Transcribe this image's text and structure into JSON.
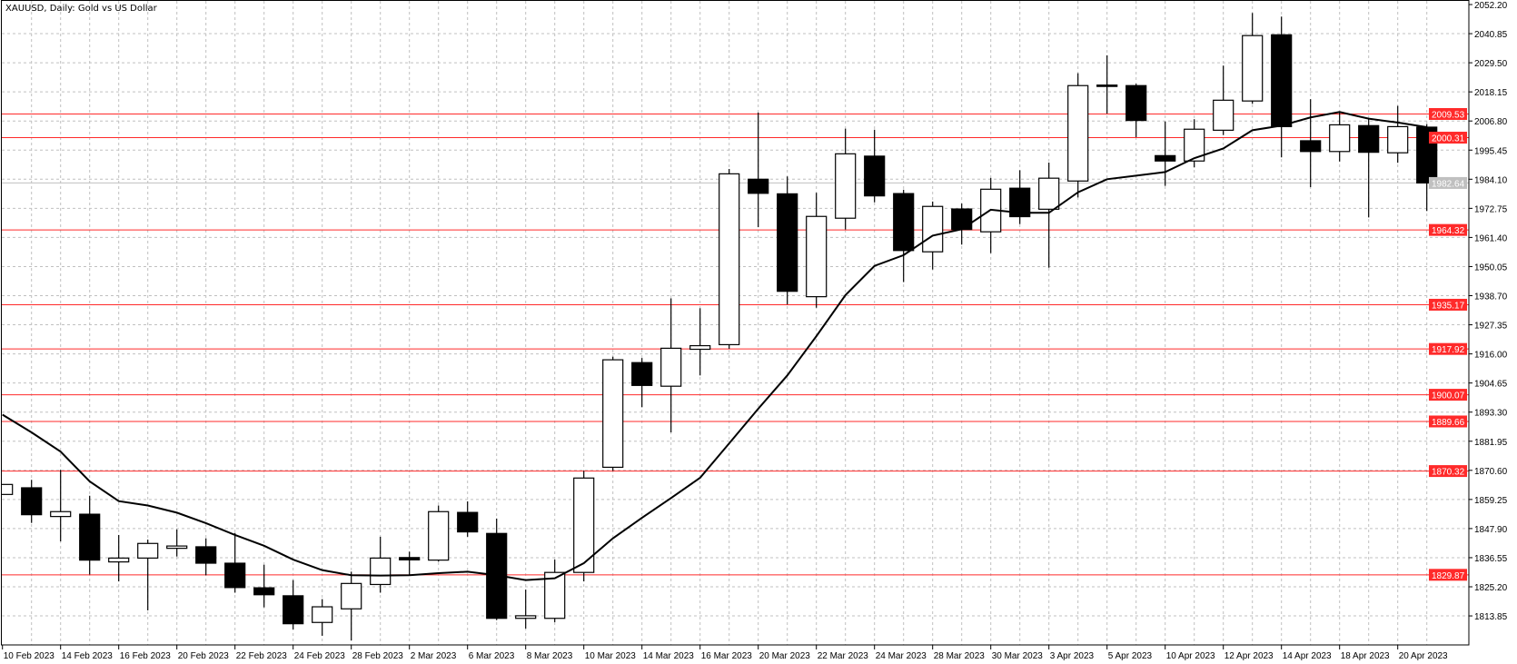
{
  "chart_data": {
    "type": "candlestick",
    "title": "XAUUSD, Daily:  Gold vs US Dollar",
    "symbol": "XAUUSD",
    "timeframe": "Daily",
    "ylim": [
      1806.0,
      2053.9
    ],
    "grid": true,
    "colors": {
      "bull_body": "#ffffff",
      "bear_body": "#000000",
      "candle_outline": "#000000",
      "moving_average": "#000000",
      "level_line": "#ff2a2a",
      "level_label_bg": "#ff2a2a",
      "current_price": "#c0c0c0",
      "grid": "#c0c0c0"
    },
    "dates": [
      "10 Feb 2023",
      "13 Feb 2023",
      "14 Feb 2023",
      "15 Feb 2023",
      "16 Feb 2023",
      "17 Feb 2023",
      "20 Feb 2023",
      "21 Feb 2023",
      "22 Feb 2023",
      "23 Feb 2023",
      "24 Feb 2023",
      "27 Feb 2023",
      "28 Feb 2023",
      "1 Mar 2023",
      "2 Mar 2023",
      "3 Mar 2023",
      "6 Mar 2023",
      "7 Mar 2023",
      "8 Mar 2023",
      "9 Mar 2023",
      "10 Mar 2023",
      "13 Mar 2023",
      "14 Mar 2023",
      "15 Mar 2023",
      "16 Mar 2023",
      "17 Mar 2023",
      "20 Mar 2023",
      "21 Mar 2023",
      "22 Mar 2023",
      "23 Mar 2023",
      "24 Mar 2023",
      "27 Mar 2023",
      "28 Mar 2023",
      "29 Mar 2023",
      "30 Mar 2023",
      "31 Mar 2023",
      "3 Apr 2023",
      "4 Apr 2023",
      "5 Apr 2023",
      "6 Apr 2023",
      "10 Apr 2023",
      "11 Apr 2023",
      "12 Apr 2023",
      "13 Apr 2023",
      "14 Apr 2023",
      "17 Apr 2023",
      "18 Apr 2023",
      "19 Apr 2023",
      "20 Apr 2023",
      "21 Apr 2023"
    ],
    "ohlc_fields": [
      "open",
      "high",
      "low",
      "close"
    ],
    "ohlc": [
      [
        1861.2,
        1865.1,
        1861.2,
        1865.1
      ],
      [
        1863.8,
        1866.9,
        1850.1,
        1853.3
      ],
      [
        1852.6,
        1870.8,
        1842.9,
        1854.5
      ],
      [
        1853.5,
        1860.7,
        1830.0,
        1835.6
      ],
      [
        1834.9,
        1845.4,
        1827.3,
        1836.4
      ],
      [
        1836.4,
        1843.6,
        1816.0,
        1842.1
      ],
      [
        1840.2,
        1847.6,
        1837.0,
        1841.1
      ],
      [
        1840.8,
        1844.1,
        1829.7,
        1834.4
      ],
      [
        1834.4,
        1846.2,
        1822.9,
        1824.9
      ],
      [
        1824.8,
        1833.8,
        1817.2,
        1822.1
      ],
      [
        1821.7,
        1827.8,
        1808.6,
        1810.8
      ],
      [
        1811.3,
        1820.4,
        1806.1,
        1817.4
      ],
      [
        1816.6,
        1831.1,
        1804.3,
        1826.5
      ],
      [
        1826.1,
        1844.7,
        1822.9,
        1836.4
      ],
      [
        1836.6,
        1838.9,
        1829.7,
        1835.7
      ],
      [
        1835.6,
        1856.9,
        1835.0,
        1854.5
      ],
      [
        1854.2,
        1858.5,
        1844.7,
        1846.6
      ],
      [
        1846.0,
        1851.8,
        1812.2,
        1812.9
      ],
      [
        1812.9,
        1824.1,
        1808.9,
        1813.9
      ],
      [
        1812.9,
        1835.8,
        1811.4,
        1830.8
      ],
      [
        1830.8,
        1870.4,
        1827.3,
        1867.6
      ],
      [
        1871.8,
        1914.9,
        1870.4,
        1913.7
      ],
      [
        1912.6,
        1914.4,
        1895.2,
        1903.7
      ],
      [
        1903.4,
        1937.7,
        1885.4,
        1918.2
      ],
      [
        1917.8,
        1933.8,
        1907.6,
        1919.2
      ],
      [
        1919.6,
        1988.1,
        1918.0,
        1986.2
      ],
      [
        1984.1,
        2010.1,
        1965.4,
        1978.6
      ],
      [
        1978.4,
        1985.2,
        1935.3,
        1940.4
      ],
      [
        1938.3,
        1978.8,
        1934.0,
        1969.6
      ],
      [
        1968.9,
        2003.8,
        1964.5,
        1994.0
      ],
      [
        1993.1,
        2003.4,
        1975.1,
        1977.6
      ],
      [
        1978.5,
        1980.0,
        1944.0,
        1956.3
      ],
      [
        1955.8,
        1975.4,
        1948.9,
        1973.5
      ],
      [
        1972.5,
        1974.6,
        1958.6,
        1964.5
      ],
      [
        1963.6,
        1984.6,
        1955.3,
        1980.2
      ],
      [
        1980.6,
        1987.6,
        1966.6,
        1969.5
      ],
      [
        1972.4,
        1990.6,
        1949.6,
        1984.5
      ],
      [
        1983.4,
        2025.4,
        1977.0,
        2020.6
      ],
      [
        2020.8,
        2032.4,
        2009.7,
        2020.6
      ],
      [
        2020.6,
        2021.3,
        2000.5,
        2007.0
      ],
      [
        1993.3,
        2006.6,
        1981.5,
        1991.2
      ],
      [
        1991.2,
        2007.5,
        1988.7,
        2003.6
      ],
      [
        2003.2,
        2028.4,
        2001.3,
        2014.9
      ],
      [
        2014.6,
        2048.9,
        2013.5,
        2040.1
      ],
      [
        2040.4,
        2047.5,
        1992.6,
        2004.6
      ],
      [
        1999.1,
        2015.3,
        1981.0,
        1994.9
      ],
      [
        1994.9,
        2010.6,
        1991.0,
        2005.3
      ],
      [
        2005.0,
        2007.9,
        1969.2,
        1994.6
      ],
      [
        1994.4,
        2012.7,
        1990.5,
        2004.6
      ],
      [
        2004.4,
        2005.6,
        1971.7,
        1982.64
      ]
    ],
    "moving_average": [
      1892.3,
      1885.4,
      1877.9,
      1866.3,
      1858.6,
      1856.9,
      1854.1,
      1850.0,
      1845.4,
      1841.2,
      1835.8,
      1831.7,
      1829.7,
      1829.6,
      1829.7,
      1830.5,
      1831.1,
      1829.7,
      1827.8,
      1828.5,
      1834.4,
      1844.1,
      1852.1,
      1859.8,
      1867.7,
      1881.1,
      1894.6,
      1907.6,
      1922.9,
      1938.9,
      1950.3,
      1954.5,
      1962.1,
      1964.6,
      1972.2,
      1971.0,
      1971.0,
      1979.0,
      1984.1,
      1985.5,
      1986.9,
      1992.3,
      1996.1,
      2003.2,
      2005.0,
      2008.2,
      2010.3,
      2007.7,
      2006.2,
      2004.4
    ],
    "levels": [
      "2009.53",
      "2000.31",
      "1964.32",
      "1935.17",
      "1917.92",
      "1900.07",
      "1889.66",
      "1870.32",
      "1829.87"
    ],
    "current_price": "1982.64",
    "y_ticks": [
      "2052.20",
      "2040.85",
      "2029.50",
      "2018.15",
      "2006.80",
      "1995.45",
      "1984.10",
      "1972.75",
      "1961.40",
      "1950.05",
      "1938.70",
      "1927.35",
      "1916.00",
      "1904.65",
      "1893.30",
      "1881.95",
      "1870.60",
      "1859.25",
      "1847.90",
      "1836.55",
      "1825.20",
      "1813.85"
    ],
    "x_tick_labels": [
      "10 Feb 2023",
      "14 Feb 2023",
      "16 Feb 2023",
      "20 Feb 2023",
      "22 Feb 2023",
      "24 Feb 2023",
      "28 Feb 2023",
      "2 Mar 2023",
      "6 Mar 2023",
      "8 Mar 2023",
      "10 Mar 2023",
      "14 Mar 2023",
      "16 Mar 2023",
      "20 Mar 2023",
      "22 Mar 2023",
      "24 Mar 2023",
      "28 Mar 2023",
      "30 Mar 2023",
      "3 Apr 2023",
      "5 Apr 2023",
      "10 Apr 2023",
      "12 Apr 2023",
      "14 Apr 2023",
      "18 Apr 2023",
      "20 Apr 2023"
    ]
  }
}
